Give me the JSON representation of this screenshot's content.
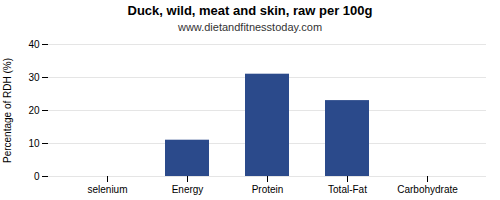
{
  "chart_data": {
    "type": "bar",
    "title": "Duck, wild, meat and skin, raw per 100g",
    "subtitle": "www.dietandfitnesstoday.com",
    "ylabel": "Percentage of RDH (%)",
    "categories": [
      "selenium",
      "Energy",
      "Protein",
      "Total-Fat",
      "Carbohydrate"
    ],
    "values": [
      0.0,
      11,
      31,
      23,
      0.0
    ],
    "color": "#2b4a8b",
    "ylim": [
      0,
      40
    ],
    "yticks": [
      0,
      10,
      20,
      30,
      40
    ],
    "grid": true
  }
}
